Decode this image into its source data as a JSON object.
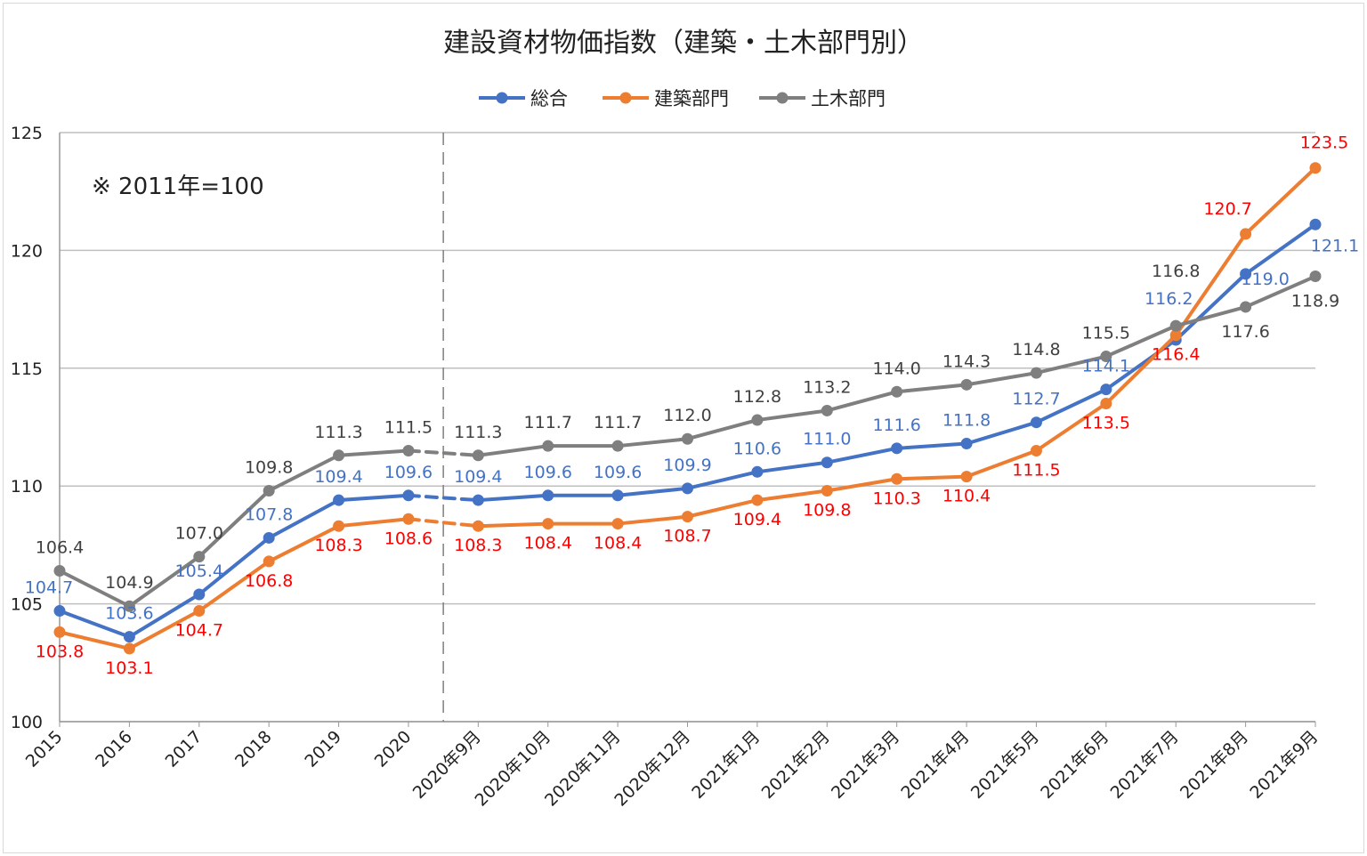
{
  "chart_data": {
    "type": "line",
    "title": "建設資材物価指数（建築・土木部門別）",
    "annotation": "※ 2011年=100",
    "xlabel": "",
    "ylabel": "",
    "ylim": [
      100,
      125
    ],
    "yticks": [
      100,
      105,
      110,
      115,
      120,
      125
    ],
    "grid": true,
    "legend_position": "top",
    "categories": [
      "2015",
      "2016",
      "2017",
      "2018",
      "2019",
      "2020",
      "2020年9月",
      "2020年10月",
      "2020年11月",
      "2020年12月",
      "2021年1月",
      "2021年2月",
      "2021年3月",
      "2021年4月",
      "2021年5月",
      "2021年6月",
      "2021年7月",
      "2021年8月",
      "2021年9月"
    ],
    "series": [
      {
        "name": "総合",
        "color": "#4472C4",
        "label_color": "#4472C4",
        "values": [
          104.7,
          103.6,
          105.4,
          107.8,
          109.4,
          109.6,
          109.4,
          109.6,
          109.6,
          109.9,
          110.6,
          111.0,
          111.6,
          111.8,
          112.7,
          114.1,
          116.2,
          119.0,
          121.1
        ]
      },
      {
        "name": "建築部門",
        "color": "#ED7D31",
        "label_color": "#FF0000",
        "values": [
          103.8,
          103.1,
          104.7,
          106.8,
          108.3,
          108.6,
          108.3,
          108.4,
          108.4,
          108.7,
          109.4,
          109.8,
          110.3,
          110.4,
          111.5,
          113.5,
          116.4,
          120.7,
          123.5
        ]
      },
      {
        "name": "土木部門",
        "color": "#7F7F7F",
        "label_color": "#404040",
        "values": [
          106.4,
          104.9,
          107.0,
          109.8,
          111.3,
          111.5,
          111.3,
          111.7,
          111.7,
          112.0,
          112.8,
          113.2,
          114.0,
          114.3,
          114.8,
          115.5,
          116.8,
          117.6,
          118.9
        ]
      }
    ],
    "dashed_segment_between": [
      "2020",
      "2020年9月"
    ]
  }
}
